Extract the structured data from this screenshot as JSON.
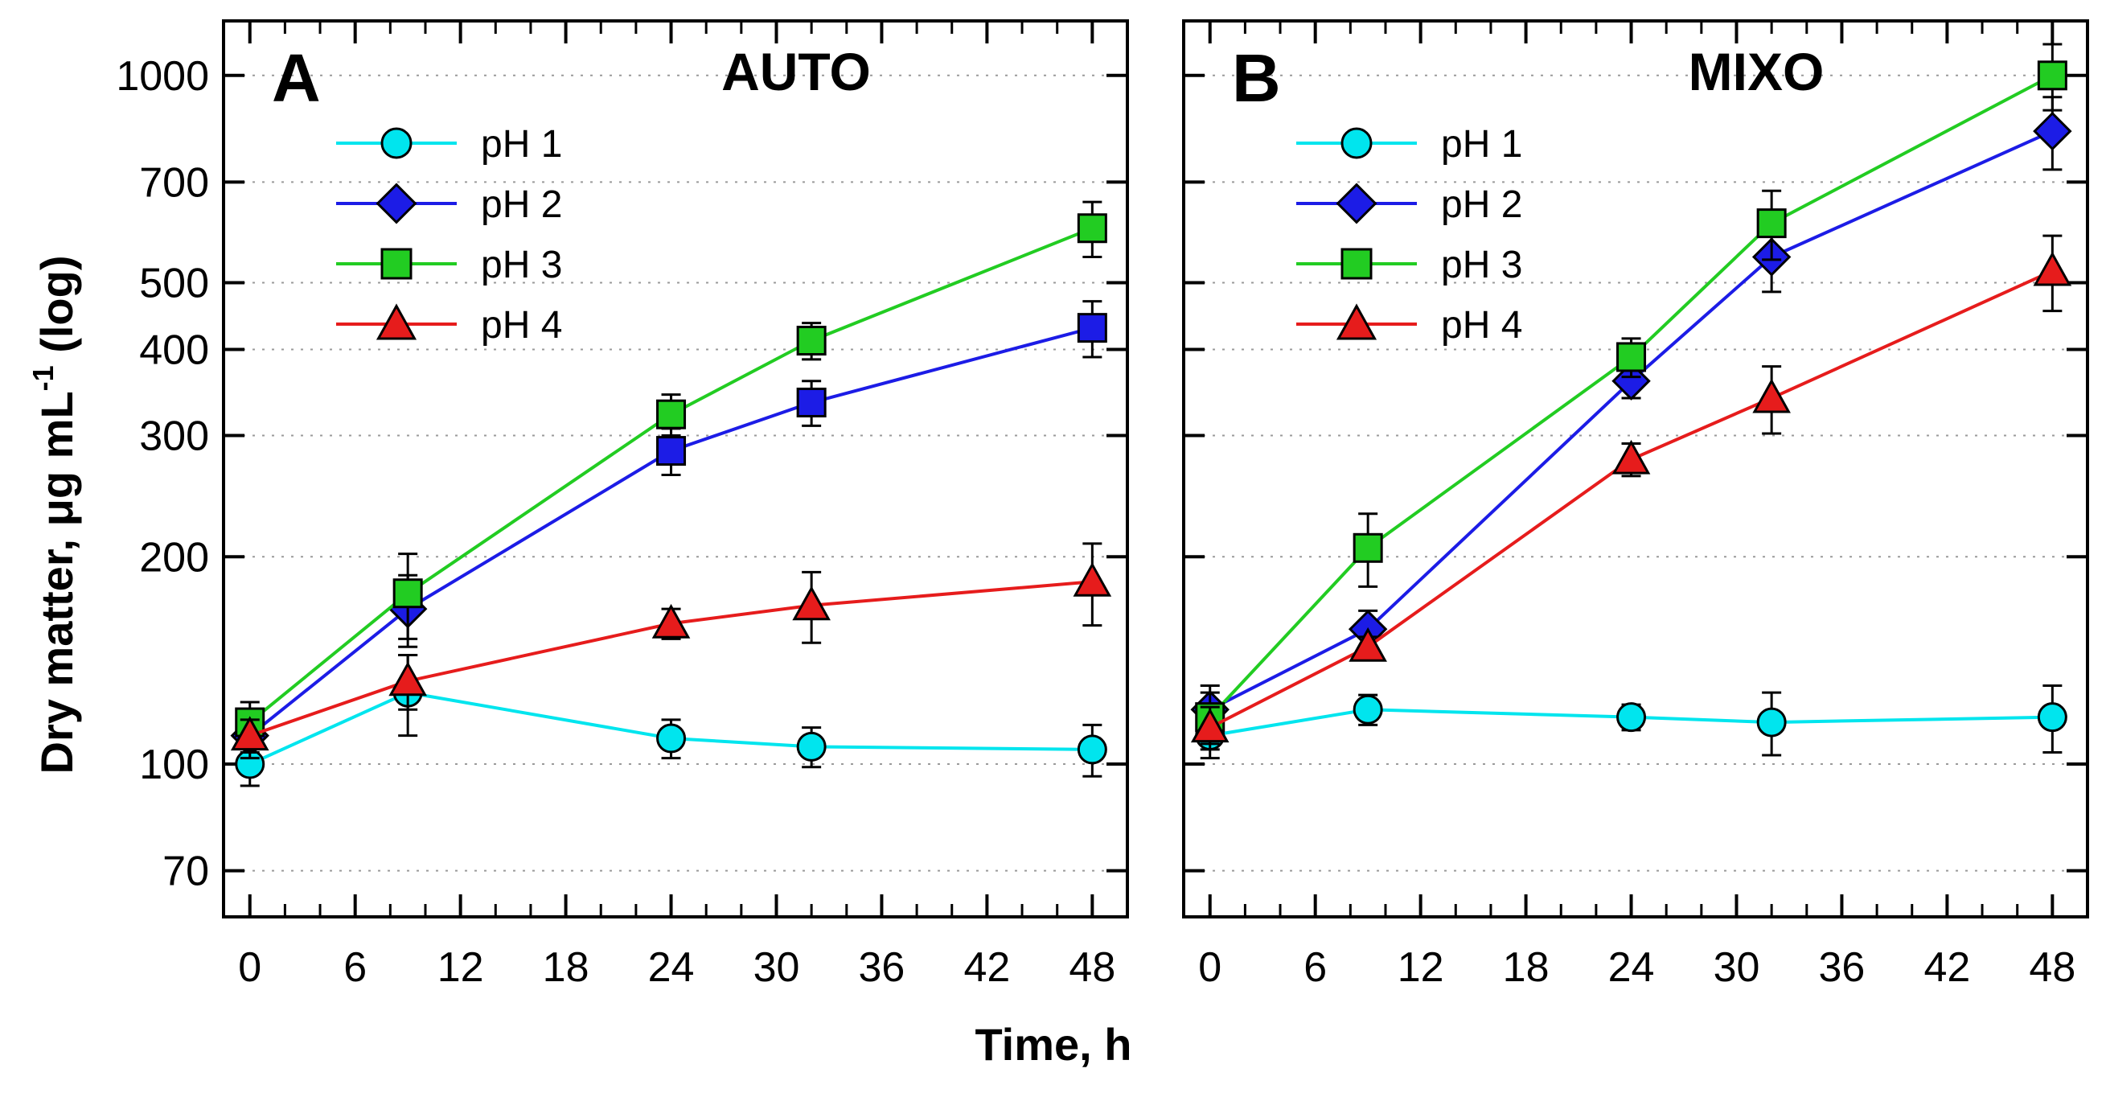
{
  "figure": {
    "ylabel_main": "Dry matter, μg mL",
    "ylabel_sup": "-1",
    "ylabel_tail": " (log)",
    "xlabel": "Time, h"
  },
  "axes": {
    "yscale": "log",
    "ylim": [
      60,
      1200
    ],
    "xlim": [
      -1.5,
      50
    ],
    "yticks": [
      70,
      100,
      200,
      300,
      400,
      500,
      700,
      1000
    ],
    "ytick_labels": [
      "70",
      "100",
      "200",
      "300",
      "400",
      "500",
      "700",
      "1000"
    ],
    "xticks": [
      0,
      6,
      12,
      18,
      24,
      30,
      36,
      42,
      48
    ],
    "xtick_labels": [
      "0",
      "6",
      "12",
      "18",
      "24",
      "30",
      "36",
      "42",
      "48"
    ],
    "x_minor_step": 2,
    "grid": "dotted horizontal at y ticks"
  },
  "chart_data": [
    {
      "type": "line",
      "panel_letter": "A",
      "title": "AUTO",
      "legend_position": "top-left",
      "x": [
        0,
        9,
        24,
        32,
        48
      ],
      "series": [
        {
          "name": "pH 1",
          "marker": "circle",
          "color": "#00E5EE",
          "line_color": "#00E5EE",
          "values": [
            100,
            127,
            109,
            106,
            105
          ],
          "errors": [
            7,
            17,
            7,
            7,
            9
          ]
        },
        {
          "name": "pH 2",
          "marker": "diamond",
          "color": "#1C1CE6",
          "line_color": "#1C1CE6",
          "marker_override": {
            "2": "square",
            "3": "square",
            "4": "square"
          },
          "values": [
            110,
            168,
            285,
            335,
            430
          ],
          "errors": [
            8,
            20,
            22,
            25,
            40
          ]
        },
        {
          "name": "pH 3",
          "marker": "square",
          "color": "#22CC22",
          "line_color": "#22CC22",
          "values": [
            115,
            177,
            322,
            412,
            600
          ],
          "errors": [
            8,
            25,
            22,
            25,
            55
          ]
        },
        {
          "name": "pH 4",
          "marker": "triangle",
          "color": "#E61C1C",
          "line_color": "#E61C1C",
          "values": [
            110,
            132,
            160,
            170,
            184
          ],
          "errors": [
            6,
            12,
            8,
            20,
            25
          ]
        }
      ]
    },
    {
      "type": "line",
      "panel_letter": "B",
      "title": "MIXO",
      "legend_position": "top-left",
      "x": [
        0,
        9,
        24,
        32,
        48
      ],
      "series": [
        {
          "name": "pH 1",
          "marker": "circle",
          "color": "#00E5EE",
          "line_color": "#00E5EE",
          "values": [
            110,
            120,
            117,
            115,
            117
          ],
          "errors": [
            8,
            6,
            5,
            12,
            13
          ]
        },
        {
          "name": "pH 2",
          "marker": "diamond",
          "color": "#1C1CE6",
          "line_color": "#1C1CE6",
          "values": [
            120,
            157,
            360,
            545,
            830
          ],
          "errors": [
            10,
            10,
            20,
            60,
            100
          ]
        },
        {
          "name": "pH 3",
          "marker": "square",
          "color": "#22CC22",
          "line_color": "#22CC22",
          "values": [
            117,
            206,
            390,
            610,
            1000
          ],
          "errors": [
            10,
            25,
            25,
            70,
            110
          ]
        },
        {
          "name": "pH 4",
          "marker": "triangle",
          "color": "#E61C1C",
          "line_color": "#E61C1C",
          "values": [
            113,
            148,
            277,
            340,
            520
          ],
          "errors": [
            8,
            5,
            15,
            38,
            65
          ]
        }
      ]
    }
  ]
}
